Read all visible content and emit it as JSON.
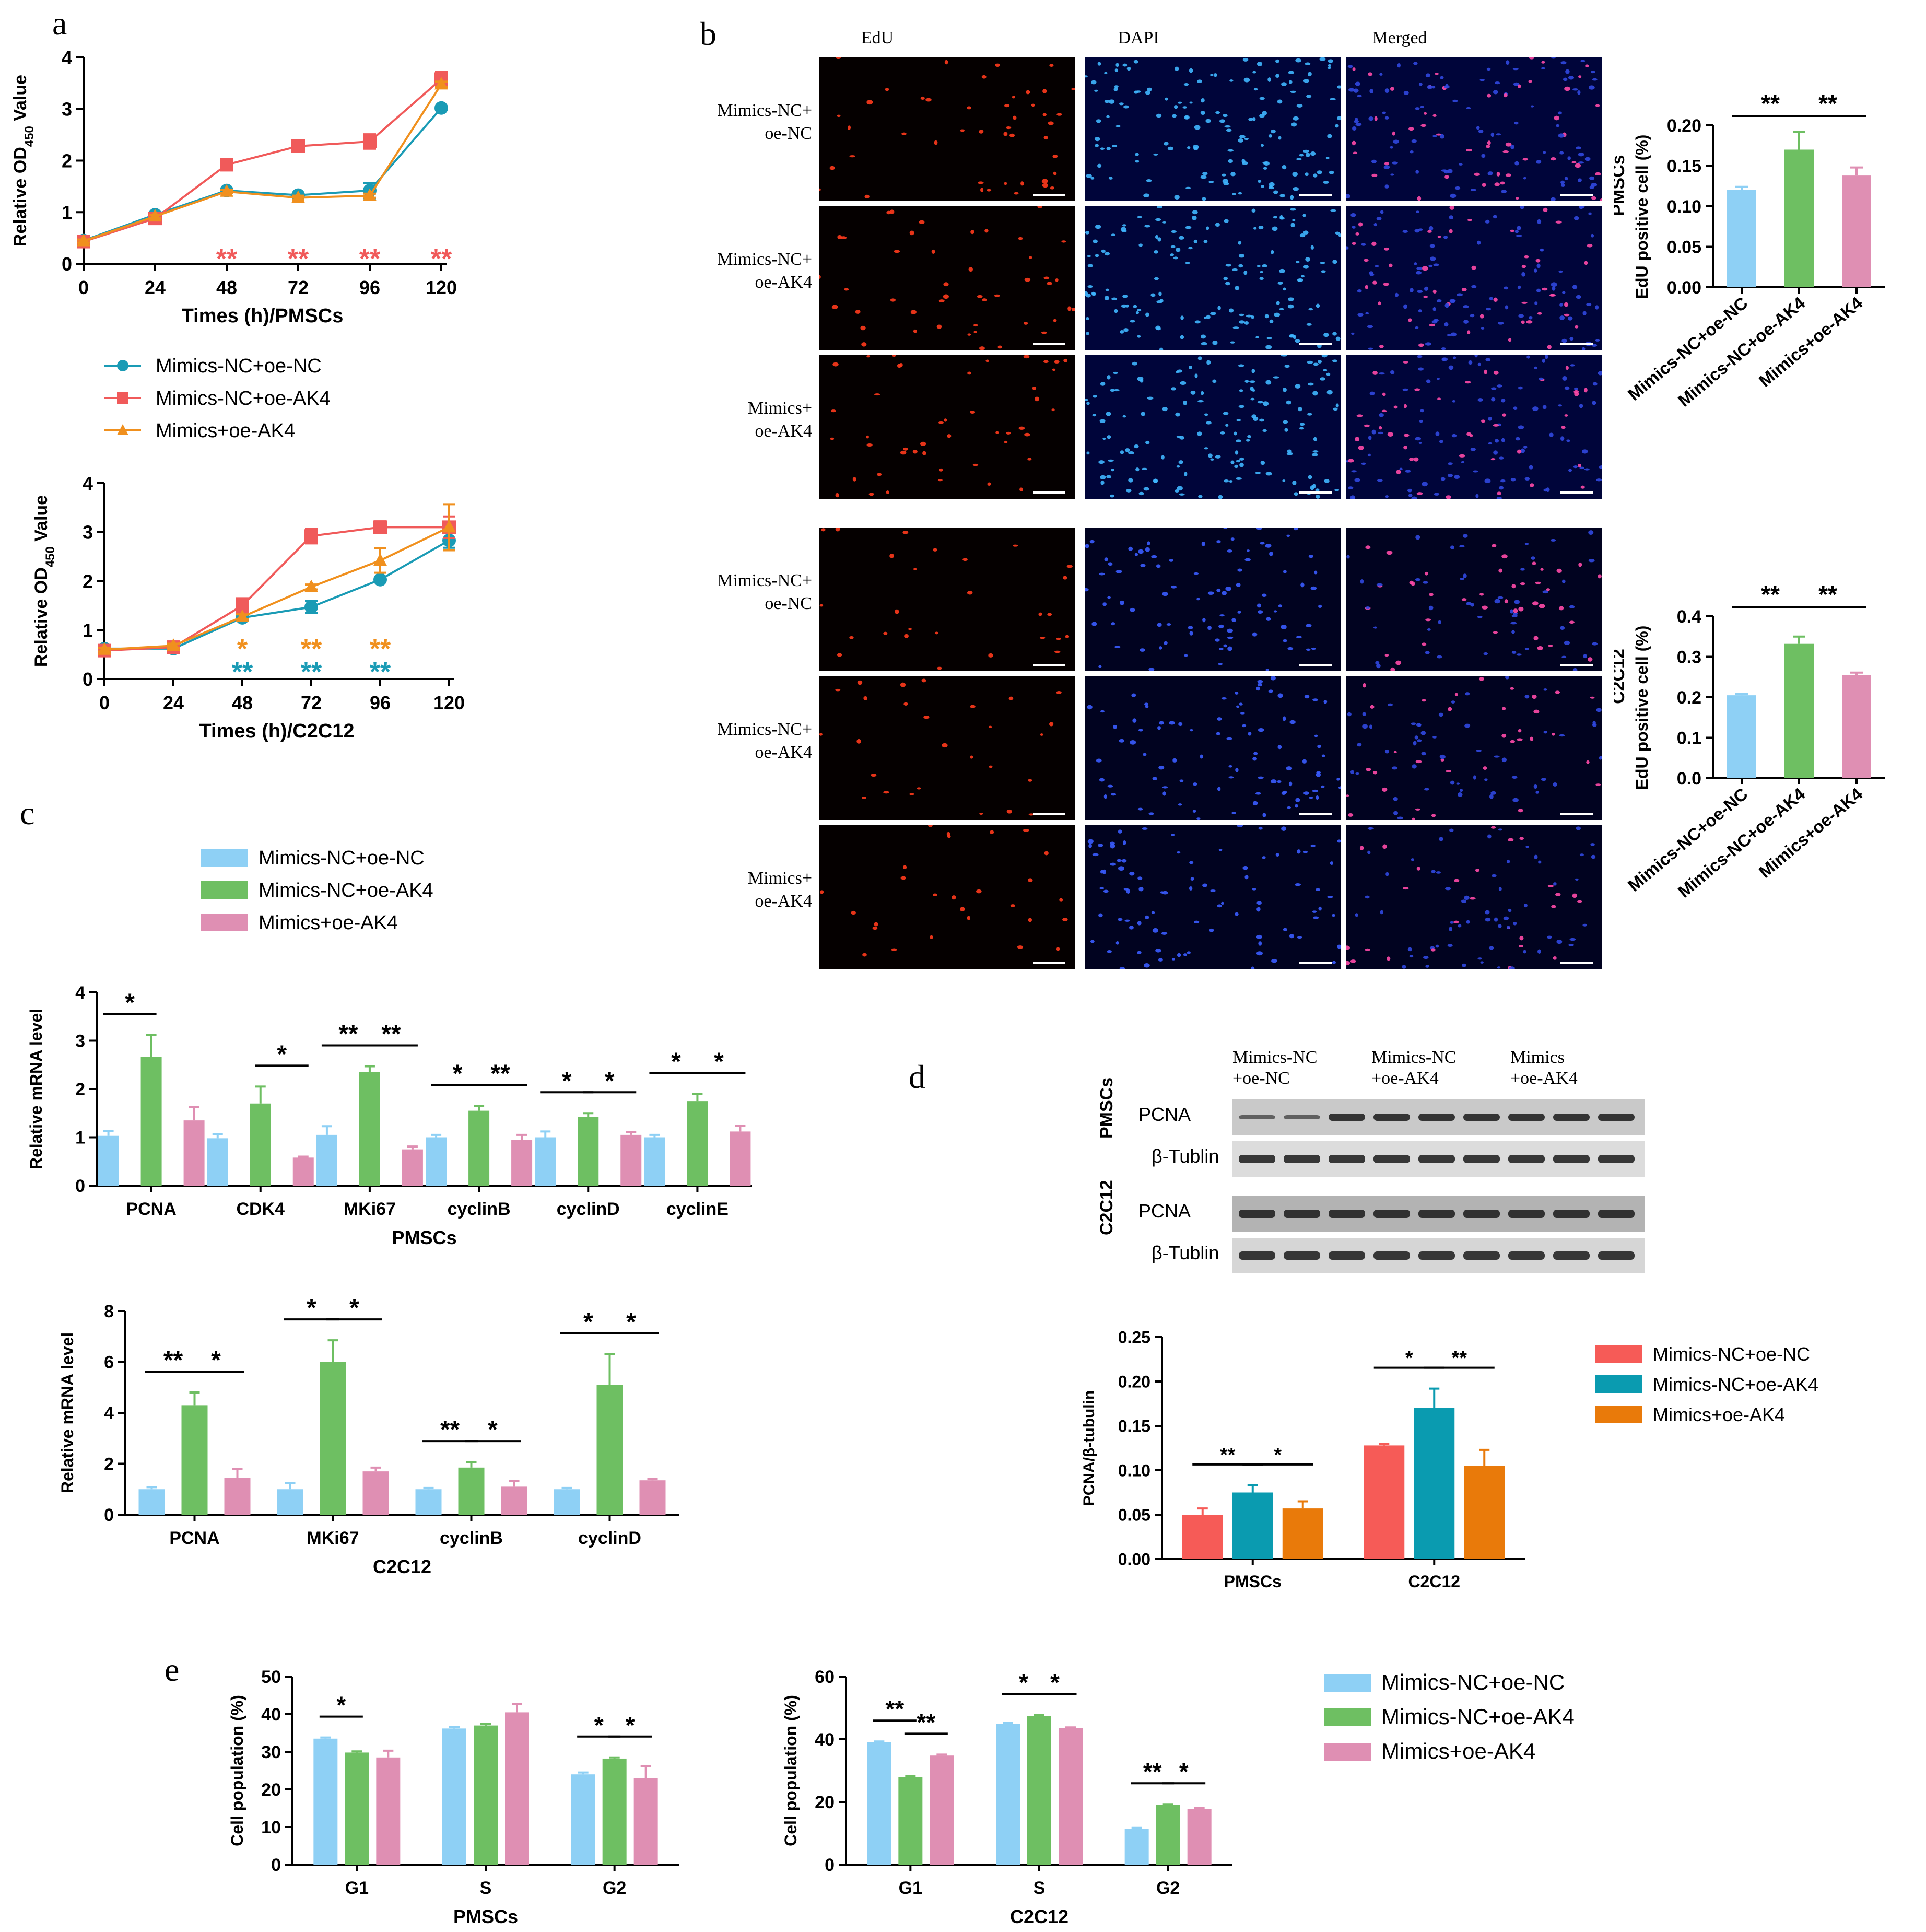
{
  "panels": {
    "a": "a",
    "b": "b",
    "c": "c",
    "d": "d",
    "e": "e"
  },
  "groups": [
    "Mimics-NC+oe-NC",
    "Mimics-NC+oe-AK4",
    "Mimics+oe-AK4"
  ],
  "colors": {
    "line": [
      "#1a9bb5",
      "#f05a5a",
      "#f0901e"
    ],
    "light": [
      "#8ed0f5",
      "#6ebf62",
      "#df8fb3"
    ],
    "d": [
      "#f65b57",
      "#0a9bb0",
      "#e97a0a"
    ]
  },
  "micro": {
    "col_labels": [
      "EdU",
      "DAPI",
      "Merged"
    ],
    "row_labels": [
      [
        "Mimics-NC+",
        "oe-NC"
      ],
      [
        "Mimics-NC+",
        "oe-AK4"
      ],
      [
        "Mimics+",
        "oe-AK4"
      ],
      [
        "Mimics-NC+",
        "oe-NC"
      ],
      [
        "Mimics-NC+",
        "oe-AK4"
      ],
      [
        "Mimics+",
        "oe-AK4"
      ]
    ]
  },
  "western": {
    "col_labels": [
      [
        "Mimics-NC",
        "+oe-NC"
      ],
      [
        "Mimics-NC",
        "+oe-AK4"
      ],
      [
        "Mimics",
        "+oe-AK4"
      ]
    ],
    "groups": [
      "PMSCs",
      "C2C12"
    ],
    "bands": [
      "PCNA",
      "β-Tublin"
    ]
  },
  "chart_data": [
    {
      "id": "a1",
      "type": "line",
      "title": "",
      "xlabel": "Times (h)/PMSCs",
      "ylabel": "Relative OD450 Value",
      "x": [
        0,
        24,
        48,
        72,
        96,
        120
      ],
      "ylim": [
        0,
        4
      ],
      "yticks": [
        0,
        1,
        2,
        3,
        4
      ],
      "series": [
        {
          "name": "Mimics-NC+oe-NC",
          "values": [
            0.45,
            0.95,
            1.42,
            1.33,
            1.42,
            3.02
          ],
          "err": [
            0.03,
            0.03,
            0.04,
            0.04,
            0.15,
            0.03
          ]
        },
        {
          "name": "Mimics-NC+oe-AK4",
          "values": [
            0.43,
            0.88,
            1.92,
            2.28,
            2.37,
            3.58
          ],
          "err": [
            0.03,
            0.04,
            0.04,
            0.05,
            0.14,
            0.14
          ]
        },
        {
          "name": "Mimics+oe-AK4",
          "values": [
            0.44,
            0.92,
            1.4,
            1.28,
            1.32,
            3.48
          ],
          "err": [
            0.03,
            0.03,
            0.03,
            0.04,
            0.04,
            0.05
          ]
        }
      ],
      "annotations": [
        {
          "x": 48,
          "rows": [
            {
              "text": "**",
              "color": "#f05a5a"
            }
          ]
        },
        {
          "x": 72,
          "rows": [
            {
              "text": "**",
              "color": "#f05a5a"
            }
          ]
        },
        {
          "x": 96,
          "rows": [
            {
              "text": "**",
              "color": "#f05a5a"
            }
          ]
        },
        {
          "x": 120,
          "rows": [
            {
              "text": "**",
              "color": "#f05a5a"
            }
          ]
        }
      ]
    },
    {
      "id": "a2",
      "type": "line",
      "title": "",
      "xlabel": "Times (h)/C2C12",
      "ylabel": "Relative OD450 Value",
      "x": [
        0,
        24,
        48,
        72,
        96,
        120
      ],
      "ylim": [
        0,
        4
      ],
      "yticks": [
        0,
        1,
        2,
        3,
        4
      ],
      "series": [
        {
          "name": "Mimics-NC+oe-NC",
          "values": [
            0.62,
            0.62,
            1.25,
            1.47,
            2.03,
            2.83
          ],
          "err": [
            0.04,
            0.04,
            0.05,
            0.12,
            0.05,
            0.15
          ]
        },
        {
          "name": "Mimics-NC+oe-AK4",
          "values": [
            0.58,
            0.65,
            1.5,
            2.92,
            3.1,
            3.1
          ],
          "err": [
            0.04,
            0.05,
            0.15,
            0.15,
            0.12,
            0.22
          ]
        },
        {
          "name": "Mimics+oe-AK4",
          "values": [
            0.6,
            0.68,
            1.27,
            1.88,
            2.42,
            3.1
          ],
          "err": [
            0.04,
            0.04,
            0.05,
            0.05,
            0.25,
            0.47
          ]
        }
      ],
      "annotations": [
        {
          "x": 48,
          "rows": [
            {
              "text": "*",
              "color": "#f0901e"
            },
            {
              "text": "**",
              "color": "#1a9bb5"
            }
          ]
        },
        {
          "x": 72,
          "rows": [
            {
              "text": "**",
              "color": "#f0901e"
            },
            {
              "text": "**",
              "color": "#1a9bb5"
            }
          ]
        },
        {
          "x": 96,
          "rows": [
            {
              "text": "**",
              "color": "#f0901e"
            },
            {
              "text": "**",
              "color": "#1a9bb5"
            }
          ]
        }
      ]
    },
    {
      "id": "b1",
      "type": "bar",
      "side_label": "PMSCs",
      "ylabel": "EdU positive cell (%)",
      "categories": [
        "Mimics-NC+oe-NC",
        "Mimics-NC+oe-AK4",
        "Mimics+oe-AK4"
      ],
      "values": [
        0.12,
        0.17,
        0.138
      ],
      "err": [
        0.004,
        0.022,
        0.01
      ],
      "ylim": [
        0,
        0.2
      ],
      "yticks": [
        0.0,
        0.05,
        0.1,
        0.15,
        0.2
      ],
      "tickfmt": 2,
      "sig": [
        {
          "from": 0,
          "to": 1,
          "text": "**"
        },
        {
          "from": 1,
          "to": 2,
          "text": "**"
        }
      ]
    },
    {
      "id": "b2",
      "type": "bar",
      "side_label": "C2C12",
      "ylabel": "EdU positive cell (%)",
      "categories": [
        "Mimics-NC+oe-NC",
        "Mimics-NC+oe-AK4",
        "Mimics+oe-AK4"
      ],
      "values": [
        0.205,
        0.332,
        0.255
      ],
      "err": [
        0.004,
        0.018,
        0.006
      ],
      "ylim": [
        0,
        0.4
      ],
      "yticks": [
        0.0,
        0.1,
        0.2,
        0.3,
        0.4
      ],
      "tickfmt": 1,
      "sig": [
        {
          "from": 0,
          "to": 1,
          "text": "**"
        },
        {
          "from": 1,
          "to": 2,
          "text": "**"
        }
      ]
    },
    {
      "id": "c1",
      "type": "bar",
      "xlabel": "PMSCs",
      "ylabel": "Relative mRNA level",
      "categories": [
        "PCNA",
        "CDK4",
        "MKi67",
        "cyclinB",
        "cyclinD",
        "cyclinE"
      ],
      "series": [
        {
          "name": "Mimics-NC+oe-NC",
          "values": [
            1.03,
            0.98,
            1.05,
            1.0,
            1.0,
            1.0
          ],
          "err": [
            0.1,
            0.08,
            0.18,
            0.05,
            0.12,
            0.05
          ]
        },
        {
          "name": "Mimics-NC+oe-AK4",
          "values": [
            2.67,
            1.7,
            2.35,
            1.55,
            1.42,
            1.75
          ],
          "err": [
            0.45,
            0.35,
            0.12,
            0.1,
            0.08,
            0.15
          ]
        },
        {
          "name": "Mimics+oe-AK4",
          "values": [
            1.35,
            0.58,
            0.75,
            0.95,
            1.05,
            1.12
          ],
          "err": [
            0.28,
            0.02,
            0.06,
            0.1,
            0.06,
            0.12
          ]
        }
      ],
      "ylim": [
        0,
        4
      ],
      "yticks": [
        0,
        1,
        2,
        3,
        4
      ],
      "sig": [
        {
          "cat": 0,
          "from": 0,
          "to": 1,
          "text": "*"
        },
        {
          "cat": 1,
          "from": 1,
          "to": 2,
          "text": "*"
        },
        {
          "cat": 2,
          "from": 0,
          "to": 1,
          "text": "**"
        },
        {
          "cat": 2,
          "from": 1,
          "to": 2,
          "text": "**"
        },
        {
          "cat": 3,
          "from": 0,
          "to": 1,
          "text": "*"
        },
        {
          "cat": 3,
          "from": 1,
          "to": 2,
          "text": "**"
        },
        {
          "cat": 4,
          "from": 0,
          "to": 1,
          "text": "*"
        },
        {
          "cat": 4,
          "from": 1,
          "to": 2,
          "text": "*"
        },
        {
          "cat": 5,
          "from": 0,
          "to": 1,
          "text": "*"
        },
        {
          "cat": 5,
          "from": 1,
          "to": 2,
          "text": "*"
        }
      ]
    },
    {
      "id": "c2",
      "type": "bar",
      "xlabel": "C2C12",
      "ylabel": "Relative mRNA level",
      "categories": [
        "PCNA",
        "MKi67",
        "cyclinB",
        "cyclinD"
      ],
      "series": [
        {
          "name": "Mimics-NC+oe-NC",
          "values": [
            1.0,
            1.0,
            1.0,
            1.0
          ],
          "err": [
            0.08,
            0.25,
            0.05,
            0.05
          ]
        },
        {
          "name": "Mimics-NC+oe-AK4",
          "values": [
            4.3,
            6.0,
            1.85,
            5.1
          ],
          "err": [
            0.5,
            0.85,
            0.22,
            1.2
          ]
        },
        {
          "name": "Mimics+oe-AK4",
          "values": [
            1.45,
            1.7,
            1.1,
            1.35
          ],
          "err": [
            0.35,
            0.15,
            0.22,
            0.05
          ]
        }
      ],
      "ylim": [
        0,
        8
      ],
      "yticks": [
        0,
        2,
        4,
        6,
        8
      ],
      "sig": [
        {
          "cat": 0,
          "from": 0,
          "to": 1,
          "text": "**"
        },
        {
          "cat": 0,
          "from": 1,
          "to": 2,
          "text": "*"
        },
        {
          "cat": 1,
          "from": 0,
          "to": 1,
          "text": "*"
        },
        {
          "cat": 1,
          "from": 1,
          "to": 2,
          "text": "*"
        },
        {
          "cat": 2,
          "from": 0,
          "to": 1,
          "text": "**"
        },
        {
          "cat": 2,
          "from": 1,
          "to": 2,
          "text": "*"
        },
        {
          "cat": 3,
          "from": 0,
          "to": 1,
          "text": "*"
        },
        {
          "cat": 3,
          "from": 1,
          "to": 2,
          "text": "*"
        }
      ]
    },
    {
      "id": "d1",
      "type": "bar",
      "ylabel": "PCNA/β-tubulin",
      "categories": [
        "PMSCs",
        "C2C12"
      ],
      "series": [
        {
          "name": "Mimics-NC+oe-NC",
          "values": [
            0.05,
            0.128
          ],
          "err": [
            0.007,
            0.002
          ]
        },
        {
          "name": "Mimics-NC+oe-AK4",
          "values": [
            0.075,
            0.17
          ],
          "err": [
            0.008,
            0.022
          ]
        },
        {
          "name": "Mimics+oe-AK4",
          "values": [
            0.057,
            0.105
          ],
          "err": [
            0.008,
            0.018
          ]
        }
      ],
      "ylim": [
        0,
        0.25
      ],
      "yticks": [
        0.0,
        0.05,
        0.1,
        0.15,
        0.2,
        0.25
      ],
      "tickfmt": 2,
      "sig": [
        {
          "cat": 0,
          "from": 0,
          "to": 1,
          "text": "**"
        },
        {
          "cat": 0,
          "from": 1,
          "to": 2,
          "text": "*"
        },
        {
          "cat": 1,
          "from": 0,
          "to": 1,
          "text": "*"
        },
        {
          "cat": 1,
          "from": 1,
          "to": 2,
          "text": "**"
        }
      ]
    },
    {
      "id": "e1",
      "type": "bar",
      "xlabel": "PMSCs",
      "ylabel": "Cell population (%)",
      "categories": [
        "G1",
        "S",
        "G2"
      ],
      "series": [
        {
          "name": "Mimics-NC+oe-NC",
          "values": [
            33.5,
            36.2,
            24.0
          ],
          "err": [
            0.3,
            0.4,
            0.5
          ]
        },
        {
          "name": "Mimics-NC+oe-AK4",
          "values": [
            29.8,
            37.0,
            28.2
          ],
          "err": [
            0.3,
            0.4,
            0.3
          ]
        },
        {
          "name": "Mimics+oe-AK4",
          "values": [
            28.5,
            40.5,
            23.0
          ],
          "err": [
            1.8,
            2.2,
            3.2
          ]
        }
      ],
      "ylim": [
        0,
        50
      ],
      "yticks": [
        0,
        10,
        20,
        30,
        40,
        50
      ],
      "sig": [
        {
          "cat": 0,
          "from": 0,
          "to": 1,
          "text": "*"
        },
        {
          "cat": 2,
          "from": 0,
          "to": 1,
          "text": "*"
        },
        {
          "cat": 2,
          "from": 1,
          "to": 2,
          "text": "*"
        }
      ]
    },
    {
      "id": "e2",
      "type": "bar",
      "xlabel": "C2C12",
      "ylabel": "Cell population (%)",
      "categories": [
        "G1",
        "S",
        "G2"
      ],
      "series": [
        {
          "name": "Mimics-NC+oe-NC",
          "values": [
            39.0,
            45.0,
            11.5
          ],
          "err": [
            0.3,
            0.3,
            0.2
          ]
        },
        {
          "name": "Mimics-NC+oe-AK4",
          "values": [
            28.0,
            47.5,
            19.0
          ],
          "err": [
            0.3,
            0.3,
            0.3
          ]
        },
        {
          "name": "Mimics+oe-AK4",
          "values": [
            34.8,
            43.5,
            17.8
          ],
          "err": [
            0.3,
            0.3,
            0.3
          ]
        }
      ],
      "ylim": [
        0,
        60
      ],
      "yticks": [
        0,
        20,
        40,
        60
      ],
      "sig": [
        {
          "cat": 0,
          "from": 0,
          "to": 1,
          "text": "**"
        },
        {
          "cat": 0,
          "from": 1,
          "to": 2,
          "text": "**"
        },
        {
          "cat": 1,
          "from": 0,
          "to": 1,
          "text": "*"
        },
        {
          "cat": 1,
          "from": 1,
          "to": 2,
          "text": "*"
        },
        {
          "cat": 2,
          "from": 0,
          "to": 1,
          "text": "**"
        },
        {
          "cat": 2,
          "from": 1,
          "to": 2,
          "text": "*"
        }
      ]
    }
  ]
}
